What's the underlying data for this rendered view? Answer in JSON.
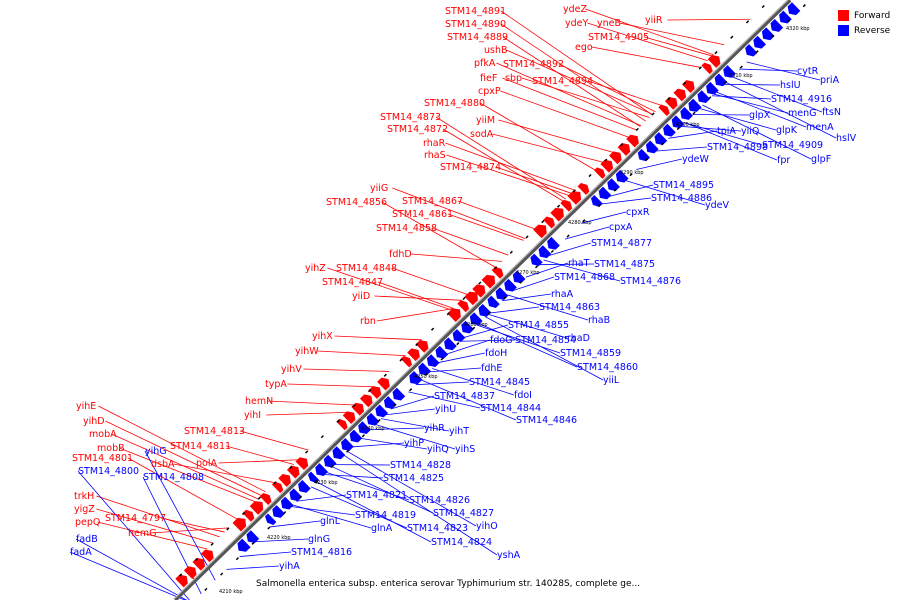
{
  "caption": "Salmonella enterica subsp. enterica serovar Typhimurium str. 14028S, complete ge...",
  "legend": [
    {
      "label": "Forward",
      "color": "#ff0000"
    },
    {
      "label": "Reverse",
      "color": "#0000ff"
    }
  ],
  "colors": {
    "forward": "#ff0000",
    "reverse": "#0000ff",
    "backbone": "#808080",
    "tick": "#000000"
  },
  "scale_labels": [
    "4210 kbp",
    "4220 kbp",
    "4230 kbp",
    "4240 kbp",
    "4250 kbp",
    "4260 kbp",
    "4270 kbp",
    "4280 kbp",
    "4290 kbp",
    "4300 kbp",
    "4310 kbp",
    "4320 kbp"
  ],
  "forward_labels": [
    "STM14_4891",
    "STM14_4890",
    "STM14_4889",
    "ushB",
    "pfkA",
    "fieF",
    "cpxP",
    "STM14_4880",
    "STM14_4873",
    "STM14_4872",
    "rhaR",
    "rhaS",
    "STM14_4874",
    "yiiG",
    "STM14_4856",
    "STM14_4867",
    "STM14_4861",
    "STM14_4858",
    "fdhD",
    "yihZ",
    "STM14_4848",
    "STM14_4847",
    "yiiD",
    "rbn",
    "yihX",
    "yihW",
    "yihV",
    "typA",
    "hemN",
    "yihI",
    "STM14_4813",
    "STM14_4811",
    "polA",
    "yihE",
    "yihD",
    "mobA",
    "mobB",
    "STM14_4801",
    "dsbA",
    "trkH",
    "yigZ",
    "pepQ",
    "STM14_4797",
    "hemG",
    "ydeZ",
    "ydeY",
    "yneB",
    "yiiR",
    "STM14_4905",
    "ego",
    "STM14_4892",
    "sbp",
    "STM14_4894",
    "yiiM",
    "sodA"
  ],
  "reverse_labels": [
    "cytR",
    "priA",
    "hslU",
    "ftsN",
    "menG",
    "STM14_4916",
    "menA",
    "glpX",
    "glpK",
    "hslV",
    "tpiA",
    "yiiQ",
    "STM14_4909",
    "STM14_4898",
    "fpr",
    "glpF",
    "ydeW",
    "STM14_4895",
    "STM14_4886",
    "ydeV",
    "cpxR",
    "cpxA",
    "STM14_4877",
    "rhaT",
    "STM14_4875",
    "STM14_4868",
    "STM14_4876",
    "rhaA",
    "STM14_4863",
    "rhaB",
    "STM14_4855",
    "fdoG",
    "STM14_4854",
    "rhaD",
    "fdoH",
    "STM14_4859",
    "fdhE",
    "STM14_4860",
    "yiiL",
    "STM14_4845",
    "fdoI",
    "STM14_4837",
    "STM14_4844",
    "yihU",
    "STM14_4846",
    "yihT",
    "yihR",
    "yihP",
    "yihQ",
    "yihS",
    "STM14_4828",
    "STM14_4825",
    "STM14_4821",
    "STM14_4826",
    "STM14_4819",
    "STM14_4827",
    "glnL",
    "yihO",
    "glnA",
    "STM14_4823",
    "glnG",
    "STM14_4824",
    "STM14_4816",
    "yshA",
    "yihA",
    "yihG",
    "STM14_4808",
    "STM14_4800",
    "fadB",
    "fadA"
  ]
}
